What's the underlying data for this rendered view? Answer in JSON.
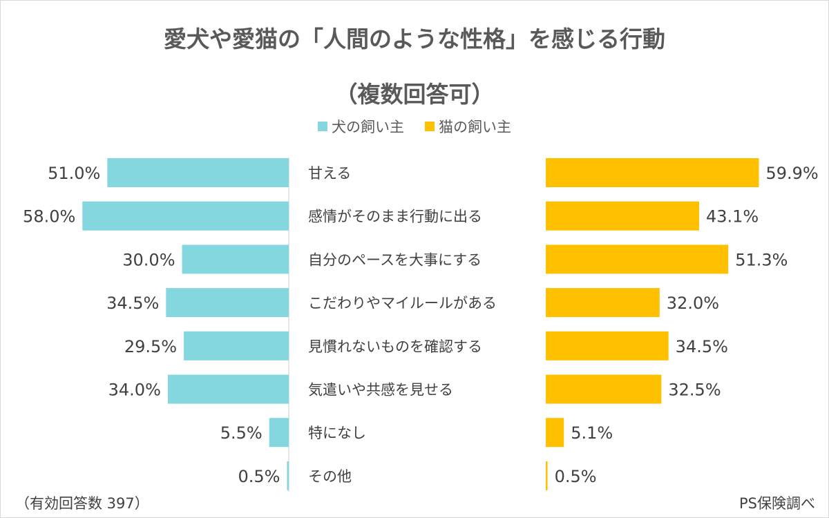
{
  "chart_data": {
    "type": "bar",
    "orientation": "horizontal-butterfly",
    "title": "愛犬や愛猫の「人間のような性格」を感じる行動",
    "subtitle": "（複数回答可）",
    "categories": [
      "甘える",
      "感情がそのまま行動に出る",
      "自分のペースを大事にする",
      "こだわりやマイルールがある",
      "見慣れないものを確認する",
      "気遣いや共感を見せる",
      "特になし",
      "その他"
    ],
    "series": [
      {
        "name": "犬の飼い主",
        "color": "#84D6DF",
        "values": [
          51.0,
          58.0,
          30.0,
          34.5,
          29.5,
          34.0,
          5.5,
          0.5
        ],
        "labels": [
          "51.0%",
          "58.0%",
          "30.0%",
          "34.5%",
          "29.5%",
          "34.0%",
          "5.5%",
          "0.5%"
        ]
      },
      {
        "name": "猫の飼い主",
        "color": "#FFC000",
        "values": [
          59.9,
          43.1,
          51.3,
          32.0,
          34.5,
          32.5,
          5.1,
          0.5
        ],
        "labels": [
          "59.9%",
          "43.1%",
          "51.3%",
          "32.0%",
          "34.5%",
          "32.5%",
          "5.1%",
          "0.5%"
        ]
      }
    ],
    "unit": "%",
    "legend": "top-center",
    "grid": false
  },
  "footer": {
    "sample": "（有効回答数 397）",
    "source": "PS保険調べ"
  }
}
